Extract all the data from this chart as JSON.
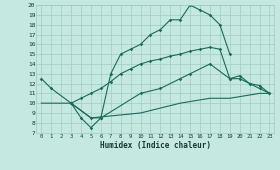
{
  "xlabel": "Humidex (Indice chaleur)",
  "xlim": [
    -0.5,
    23.5
  ],
  "ylim": [
    7,
    20
  ],
  "bg_color": "#c5e8e0",
  "grid_color": "#a0ccc5",
  "line_color": "#1a6b5a",
  "line1_x": [
    0,
    1,
    3,
    4,
    5,
    6,
    7,
    8,
    9,
    10,
    11,
    12,
    13,
    14,
    15,
    16,
    17,
    18,
    19
  ],
  "line1_y": [
    12.5,
    11.5,
    10.0,
    8.5,
    7.5,
    8.5,
    13.0,
    15.0,
    15.5,
    16.0,
    17.0,
    17.5,
    18.5,
    18.5,
    20.0,
    19.5,
    19.0,
    18.0,
    15.0
  ],
  "line2_x": [
    3,
    4,
    5,
    6,
    7,
    8,
    9,
    10,
    11,
    12,
    13,
    14,
    15,
    16,
    17,
    18,
    19,
    20,
    21,
    22,
    23
  ],
  "line2_y": [
    10.0,
    10.5,
    11.0,
    11.5,
    12.2,
    13.0,
    13.5,
    14.0,
    14.3,
    14.5,
    14.8,
    15.0,
    15.3,
    15.5,
    15.7,
    15.5,
    12.5,
    12.8,
    12.0,
    11.8,
    11.0
  ],
  "line3_x": [
    3,
    5,
    6,
    10,
    12,
    14,
    15,
    17,
    19,
    20,
    21,
    22,
    23
  ],
  "line3_y": [
    10.0,
    8.5,
    8.5,
    11.0,
    11.5,
    12.5,
    13.0,
    14.0,
    12.5,
    12.5,
    12.0,
    11.5,
    11.0
  ],
  "line4_x": [
    0,
    3,
    5,
    10,
    14,
    17,
    19,
    22,
    23
  ],
  "line4_y": [
    10.0,
    10.0,
    8.5,
    9.0,
    10.0,
    10.5,
    10.5,
    11.0,
    11.0
  ]
}
